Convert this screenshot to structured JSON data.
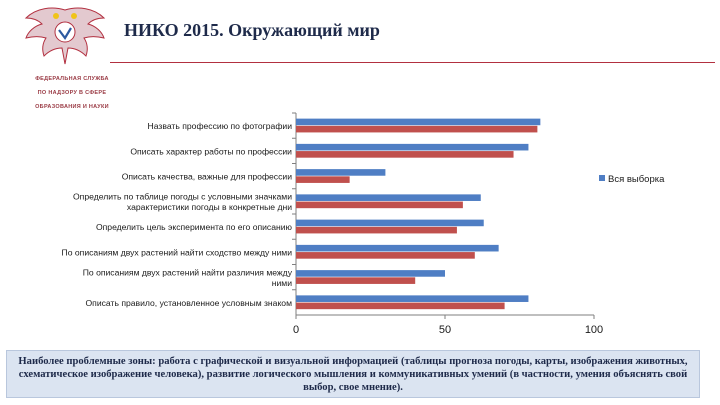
{
  "header": {
    "title": "НИКО 2015. Окружающий мир",
    "org_lines": [
      "ФЕДЕРАЛЬНАЯ СЛУЖБА",
      "ПО НАДЗОРУ В СФЕРЕ",
      "ОБРАЗОВАНИЯ И НАУКИ"
    ],
    "logo_icon": "double-headed-eagle-emblem-icon",
    "accent_color": "#b23040"
  },
  "chart_data": {
    "type": "bar",
    "orientation": "horizontal",
    "categories": [
      "Назвать профессию по фотографии",
      "Описать характер работы по профессии",
      "Описать качества, важные для профессии",
      "Определить по таблице погоды с условными значками характеристики погоды в конкретные дни",
      "Определить цель эксперимента по его описанию",
      "По описаниям двух растений найти сходство между ними",
      "По описаниям двух растений найти различия между ними",
      "Описать правило, установленное условным знаком"
    ],
    "category_lines": [
      [
        "Назвать профессию по фотографии"
      ],
      [
        "Описать характер работы по профессии"
      ],
      [
        "Описать качества, важные для профессии"
      ],
      [
        "Определить по таблице погоды с условными значками",
        "характеристики погоды в конкретные дни"
      ],
      [
        "Определить цель эксперимента по его описанию"
      ],
      [
        "По описаниям двух растений найти сходство между ними"
      ],
      [
        "По описаниям двух растений найти различия между",
        "ними"
      ],
      [
        "Описать правило, установленное условным знаком"
      ]
    ],
    "series": [
      {
        "name": "Вся выборка",
        "color": "#4f7ec4",
        "values": [
          82,
          78,
          30,
          62,
          63,
          68,
          50,
          78
        ]
      },
      {
        "color": "#c0504d",
        "values": [
          81,
          73,
          18,
          56,
          54,
          60,
          40,
          70
        ]
      }
    ],
    "xlim": [
      0,
      100
    ],
    "xticks": [
      "0",
      "50",
      "100"
    ],
    "legend_position": "right",
    "grid": false
  },
  "footer": {
    "text": "Наиболее проблемные зоны: работа с графической и визуальной информацией (таблицы прогноза погоды, карты, изображения животных, схематическое изображение человека), развитие логического мышления и коммуникативных умений (в частности, умения объяснять свой выбор, свое мнение)."
  }
}
